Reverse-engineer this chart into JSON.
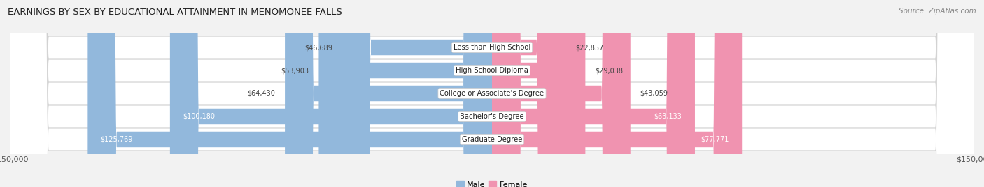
{
  "title": "EARNINGS BY SEX BY EDUCATIONAL ATTAINMENT IN MENOMONEE FALLS",
  "source": "Source: ZipAtlas.com",
  "categories": [
    "Less than High School",
    "High School Diploma",
    "College or Associate's Degree",
    "Bachelor's Degree",
    "Graduate Degree"
  ],
  "male_values": [
    46689,
    53903,
    64430,
    100180,
    125769
  ],
  "female_values": [
    22857,
    29038,
    43059,
    63133,
    77771
  ],
  "male_color": "#92b8dc",
  "female_color": "#f093b0",
  "male_label": "Male",
  "female_label": "Female",
  "xlim": 150000,
  "fig_bg": "#f2f2f2",
  "row_bg_odd": "#e8e8ec",
  "row_bg_even": "#f0f0f4"
}
